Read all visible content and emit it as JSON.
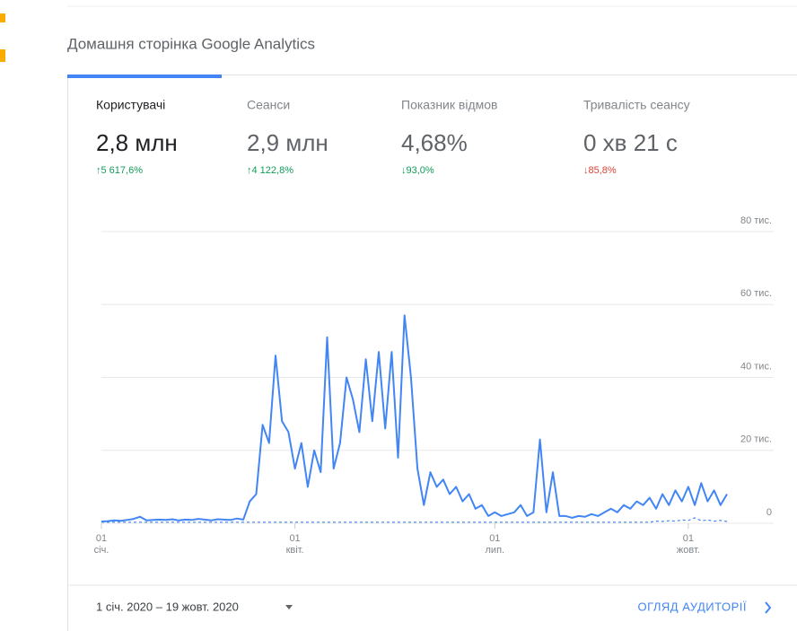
{
  "header": {
    "title": "Домашня сторінка Google Analytics"
  },
  "metrics": [
    {
      "label": "Користувачі",
      "value": "2,8 млн",
      "change": "↑5 617,6%",
      "trend": "good"
    },
    {
      "label": "Сеанси",
      "value": "2,9 млн",
      "change": "↑4 122,8%",
      "trend": "good"
    },
    {
      "label": "Показник відмов",
      "value": "4,68%",
      "change": "↓93,0%",
      "trend": "good"
    },
    {
      "label": "Тривалість сеансу",
      "value": "0 хв 21 с",
      "change": "↓85,8%",
      "trend": "bad"
    }
  ],
  "chart_data": {
    "type": "line",
    "categories": [
      "01 січ.",
      null,
      null,
      null,
      null,
      null,
      null,
      null,
      null,
      null,
      null,
      null,
      null,
      null,
      null,
      null,
      null,
      null,
      null,
      null,
      null,
      null,
      null,
      null,
      null,
      null,
      null,
      null,
      null,
      null,
      "01 квіт.",
      null,
      null,
      null,
      null,
      null,
      null,
      null,
      null,
      null,
      null,
      null,
      null,
      null,
      null,
      null,
      null,
      null,
      null,
      null,
      null,
      null,
      null,
      null,
      null,
      null,
      null,
      null,
      null,
      null,
      null,
      "01 лип.",
      null,
      null,
      null,
      null,
      null,
      null,
      null,
      null,
      null,
      null,
      null,
      null,
      null,
      null,
      null,
      null,
      null,
      null,
      null,
      null,
      null,
      null,
      null,
      null,
      null,
      null,
      null,
      null,
      null,
      "01 жовт.",
      null,
      null,
      null,
      null,
      null,
      null
    ],
    "series": [
      {
        "color": "#4285f4",
        "values": [
          500,
          600,
          800,
          700,
          900,
          1200,
          1800,
          800,
          900,
          1000,
          900,
          1100,
          800,
          1000,
          900,
          1200,
          1000,
          800,
          1100,
          1000,
          900,
          1300,
          1000,
          6000,
          8000,
          27000,
          22000,
          46000,
          28000,
          25000,
          15000,
          22000,
          10000,
          20000,
          14000,
          51000,
          15000,
          22000,
          40000,
          34000,
          25000,
          45000,
          28000,
          47000,
          26000,
          47000,
          18000,
          57000,
          40000,
          15000,
          5000,
          14000,
          10000,
          12000,
          8000,
          10000,
          6000,
          8000,
          4000,
          5000,
          2000,
          3000,
          2000,
          2500,
          3000,
          5000,
          2000,
          3000,
          23000,
          3000,
          14000,
          2000,
          2000,
          1500,
          2000,
          1800,
          2500,
          2000,
          3000,
          4000,
          3000,
          5000,
          4000,
          6000,
          5000,
          7000,
          4000,
          8000,
          5000,
          9000,
          6000,
          10000,
          5000,
          11000,
          6000,
          9000,
          5000,
          8000
        ]
      },
      {
        "color": "#4285f4",
        "dashed": true,
        "values": [
          300,
          300,
          300,
          300,
          300,
          300,
          300,
          300,
          300,
          300,
          300,
          300,
          300,
          300,
          300,
          300,
          300,
          300,
          300,
          300,
          300,
          300,
          300,
          300,
          300,
          300,
          300,
          300,
          300,
          300,
          300,
          300,
          300,
          300,
          300,
          300,
          300,
          300,
          300,
          300,
          300,
          300,
          300,
          300,
          300,
          300,
          300,
          300,
          300,
          300,
          300,
          300,
          300,
          300,
          300,
          300,
          300,
          300,
          300,
          300,
          300,
          300,
          300,
          300,
          300,
          300,
          300,
          300,
          300,
          300,
          300,
          300,
          300,
          300,
          300,
          300,
          300,
          300,
          300,
          300,
          300,
          300,
          300,
          300,
          300,
          300,
          600,
          500,
          700,
          600,
          900,
          800,
          1500,
          700,
          900,
          600,
          800,
          500
        ]
      }
    ],
    "ylim": [
      0,
      80000
    ],
    "yticks": [
      0,
      {
        "value": 20000,
        "label": "20 тис."
      },
      {
        "value": 40000,
        "label": "40 тис."
      },
      {
        "value": 60000,
        "label": "60 тис."
      },
      {
        "value": 80000,
        "label": "80 тис."
      }
    ],
    "grid": true
  },
  "footer": {
    "date_range": "1 січ. 2020 – 19 жовт. 2020",
    "link": "ОГЛЯД АУДИТОРІЇ"
  }
}
